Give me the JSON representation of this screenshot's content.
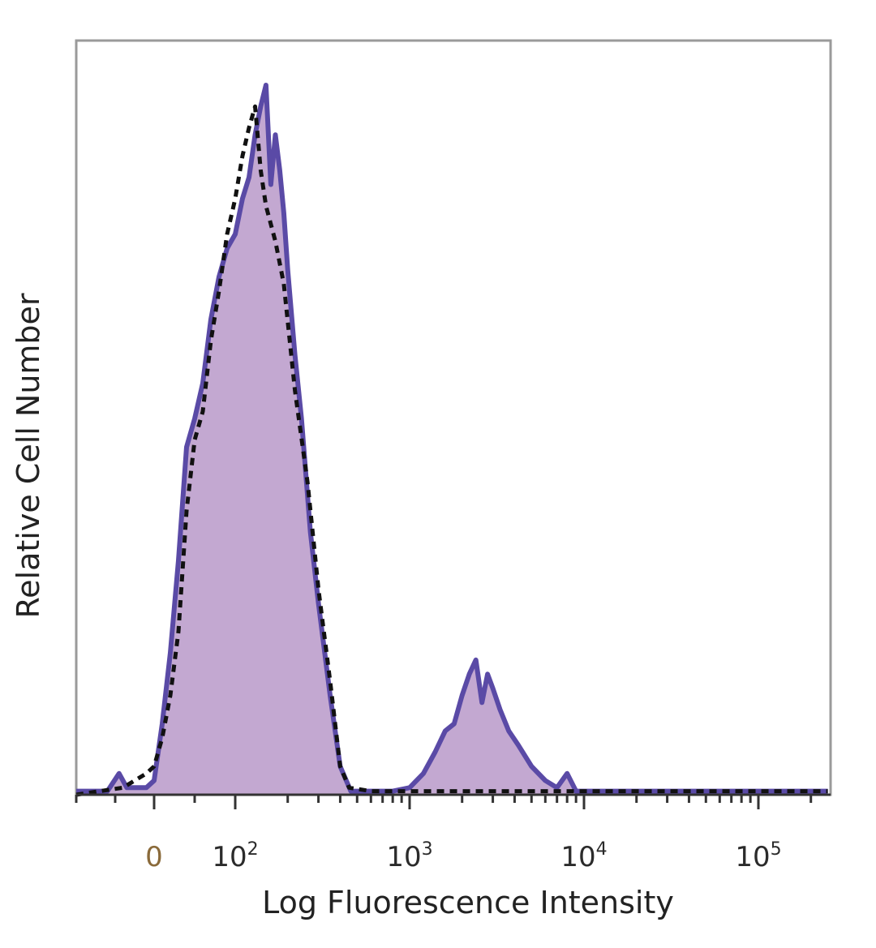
{
  "chart_data": {
    "type": "area",
    "title": "",
    "xlabel": "Log Fluorescence Intensity",
    "ylabel": "Relative Cell Number",
    "x_scale": "biexponential",
    "xlim": [
      -100,
      250000
    ],
    "ylim": [
      0,
      1
    ],
    "grid": false,
    "legend": "none",
    "x_ticks": [
      {
        "value": 0,
        "label": "0"
      },
      {
        "value": 100,
        "base": "10",
        "exp": "2"
      },
      {
        "value": 1000,
        "base": "10",
        "exp": "3"
      },
      {
        "value": 10000,
        "base": "10",
        "exp": "4"
      },
      {
        "value": 100000,
        "base": "10",
        "exp": "5"
      }
    ],
    "series": [
      {
        "style": "filled histogram",
        "fill_color": "#c3a8d1",
        "line_color": "#5a4aa6",
        "points": [
          [
            -100,
            0.005
          ],
          [
            -60,
            0.005
          ],
          [
            -45,
            0.03
          ],
          [
            -35,
            0.01
          ],
          [
            -10,
            0.01
          ],
          [
            0,
            0.02
          ],
          [
            10,
            0.1
          ],
          [
            20,
            0.2
          ],
          [
            30,
            0.33
          ],
          [
            40,
            0.49
          ],
          [
            50,
            0.53
          ],
          [
            60,
            0.58
          ],
          [
            70,
            0.67
          ],
          [
            80,
            0.73
          ],
          [
            90,
            0.77
          ],
          [
            100,
            0.79
          ],
          [
            110,
            0.84
          ],
          [
            120,
            0.87
          ],
          [
            130,
            0.93
          ],
          [
            140,
            0.97
          ],
          [
            150,
            1.0
          ],
          [
            160,
            0.86
          ],
          [
            170,
            0.93
          ],
          [
            180,
            0.88
          ],
          [
            190,
            0.82
          ],
          [
            200,
            0.74
          ],
          [
            220,
            0.62
          ],
          [
            240,
            0.53
          ],
          [
            270,
            0.37
          ],
          [
            300,
            0.27
          ],
          [
            350,
            0.14
          ],
          [
            400,
            0.04
          ],
          [
            460,
            0.005
          ],
          [
            600,
            0.005
          ],
          [
            800,
            0.005
          ],
          [
            1000,
            0.01
          ],
          [
            1200,
            0.03
          ],
          [
            1400,
            0.06
          ],
          [
            1600,
            0.09
          ],
          [
            1800,
            0.1
          ],
          [
            2000,
            0.14
          ],
          [
            2200,
            0.17
          ],
          [
            2400,
            0.19
          ],
          [
            2600,
            0.13
          ],
          [
            2800,
            0.17
          ],
          [
            3000,
            0.15
          ],
          [
            3300,
            0.12
          ],
          [
            3700,
            0.09
          ],
          [
            4200,
            0.07
          ],
          [
            5000,
            0.04
          ],
          [
            6000,
            0.02
          ],
          [
            7000,
            0.01
          ],
          [
            8000,
            0.03
          ],
          [
            9000,
            0.005
          ],
          [
            20000,
            0.005
          ],
          [
            100000,
            0.005
          ],
          [
            250000,
            0.005
          ]
        ]
      },
      {
        "style": "dashed outline",
        "line_color": "#111111",
        "points": [
          [
            -100,
            0.0
          ],
          [
            -40,
            0.01
          ],
          [
            -10,
            0.03
          ],
          [
            0,
            0.04
          ],
          [
            10,
            0.08
          ],
          [
            20,
            0.14
          ],
          [
            30,
            0.23
          ],
          [
            40,
            0.4
          ],
          [
            50,
            0.5
          ],
          [
            60,
            0.54
          ],
          [
            70,
            0.64
          ],
          [
            80,
            0.71
          ],
          [
            90,
            0.79
          ],
          [
            100,
            0.84
          ],
          [
            110,
            0.9
          ],
          [
            120,
            0.94
          ],
          [
            130,
            0.97
          ],
          [
            140,
            0.88
          ],
          [
            150,
            0.83
          ],
          [
            170,
            0.78
          ],
          [
            190,
            0.72
          ],
          [
            220,
            0.57
          ],
          [
            260,
            0.44
          ],
          [
            300,
            0.29
          ],
          [
            350,
            0.16
          ],
          [
            400,
            0.04
          ],
          [
            450,
            0.01
          ],
          [
            600,
            0.005
          ],
          [
            1000,
            0.005
          ],
          [
            10000,
            0.005
          ],
          [
            100000,
            0.005
          ],
          [
            250000,
            0.005
          ]
        ]
      }
    ]
  }
}
